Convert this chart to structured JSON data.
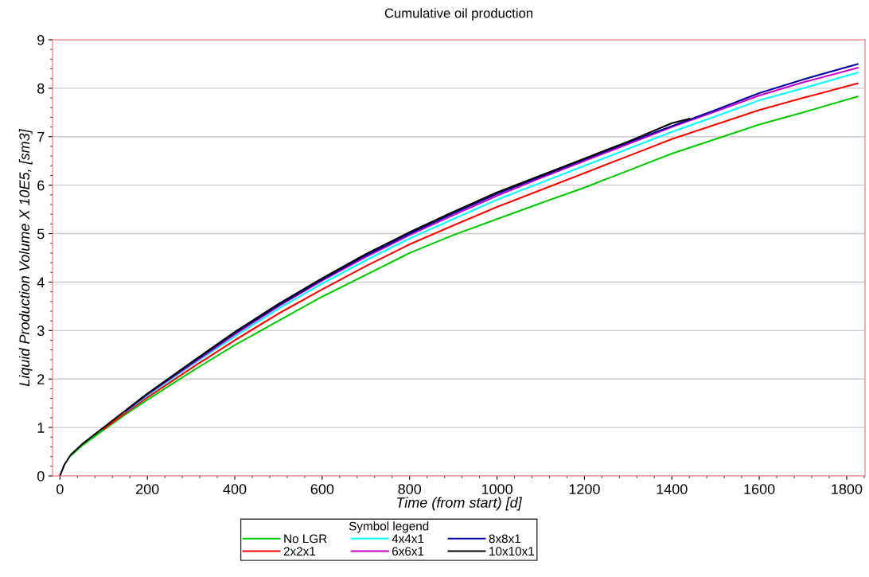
{
  "chart_data": {
    "type": "line",
    "title": "Cumulative oil production",
    "xlabel": "Time (from start) [d]",
    "ylabel": "Liquid Production Volume X 10E5, [sm3]",
    "legend_title": "Symbol legend",
    "x": [
      150,
      200,
      300,
      400,
      500,
      600,
      700,
      800,
      900,
      1000,
      1100,
      1200,
      1300,
      1400,
      1500,
      1600,
      1700,
      1825
    ],
    "series": [
      {
        "name": "No LGR",
        "color": "#00c800",
        "x": [
          25,
          50,
          100,
          150,
          200,
          300,
          400,
          500,
          600,
          700,
          800,
          900,
          1000,
          1100,
          1200,
          1300,
          1400,
          1500,
          1600,
          1700,
          1825
        ],
        "values": [
          0.42,
          0.62,
          0.95,
          1.27,
          1.57,
          2.15,
          2.7,
          3.2,
          3.7,
          4.15,
          4.6,
          4.97,
          5.3,
          5.63,
          5.95,
          6.3,
          6.65,
          6.95,
          7.25,
          7.5,
          7.83
        ]
      },
      {
        "name": "2x2x1",
        "color": "#ff0000",
        "x": [
          100,
          150,
          200,
          300,
          400,
          500,
          600,
          700,
          800,
          900,
          1000,
          1100,
          1200,
          1300,
          1400,
          1500,
          1600,
          1700,
          1825
        ],
        "values": [
          0.97,
          1.3,
          1.62,
          2.22,
          2.8,
          3.35,
          3.85,
          4.33,
          4.78,
          5.17,
          5.55,
          5.9,
          6.25,
          6.6,
          6.95,
          7.25,
          7.55,
          7.8,
          8.1
        ]
      },
      {
        "name": "4x4x1",
        "color": "#00ffff",
        "values": [
          1.32,
          1.66,
          2.28,
          2.88,
          3.45,
          3.97,
          4.45,
          4.9,
          5.3,
          5.7,
          6.05,
          6.4,
          6.75,
          7.1,
          7.42,
          7.75,
          8.0,
          8.32
        ]
      },
      {
        "name": "6x6x1",
        "color": "#c800c8",
        "values": [
          1.33,
          1.68,
          2.3,
          2.92,
          3.5,
          4.03,
          4.52,
          4.97,
          5.38,
          5.78,
          6.15,
          6.5,
          6.85,
          7.2,
          7.52,
          7.85,
          8.12,
          8.42
        ]
      },
      {
        "name": "8x8x1",
        "color": "#0000a0",
        "values": [
          1.34,
          1.69,
          2.32,
          2.95,
          3.52,
          4.05,
          4.55,
          5.0,
          5.42,
          5.82,
          6.18,
          6.53,
          6.88,
          7.22,
          7.55,
          7.9,
          8.18,
          8.5
        ]
      },
      {
        "name": "10x10x1",
        "color": "#000000",
        "x": [
          0,
          10,
          25,
          50,
          100,
          150,
          200,
          300,
          400,
          500,
          600,
          700,
          800,
          900,
          1000,
          1100,
          1200,
          1300,
          1400,
          1440
        ],
        "values": [
          0,
          0.23,
          0.44,
          0.65,
          1.0,
          1.35,
          1.7,
          2.34,
          2.97,
          3.55,
          4.08,
          4.58,
          5.03,
          5.45,
          5.85,
          6.2,
          6.55,
          6.9,
          7.28,
          7.37
        ]
      }
    ],
    "xlim": [
      -17,
      1842
    ],
    "xticks": [
      0,
      200,
      400,
      600,
      800,
      1000,
      1200,
      1400,
      1600,
      1800
    ],
    "ylim": [
      0,
      9
    ],
    "yticks": [
      0,
      1,
      2,
      3,
      4,
      5,
      6,
      7,
      8,
      9
    ],
    "grid": "y",
    "legend": "bottom",
    "marker": "none",
    "line_style": "solid"
  }
}
